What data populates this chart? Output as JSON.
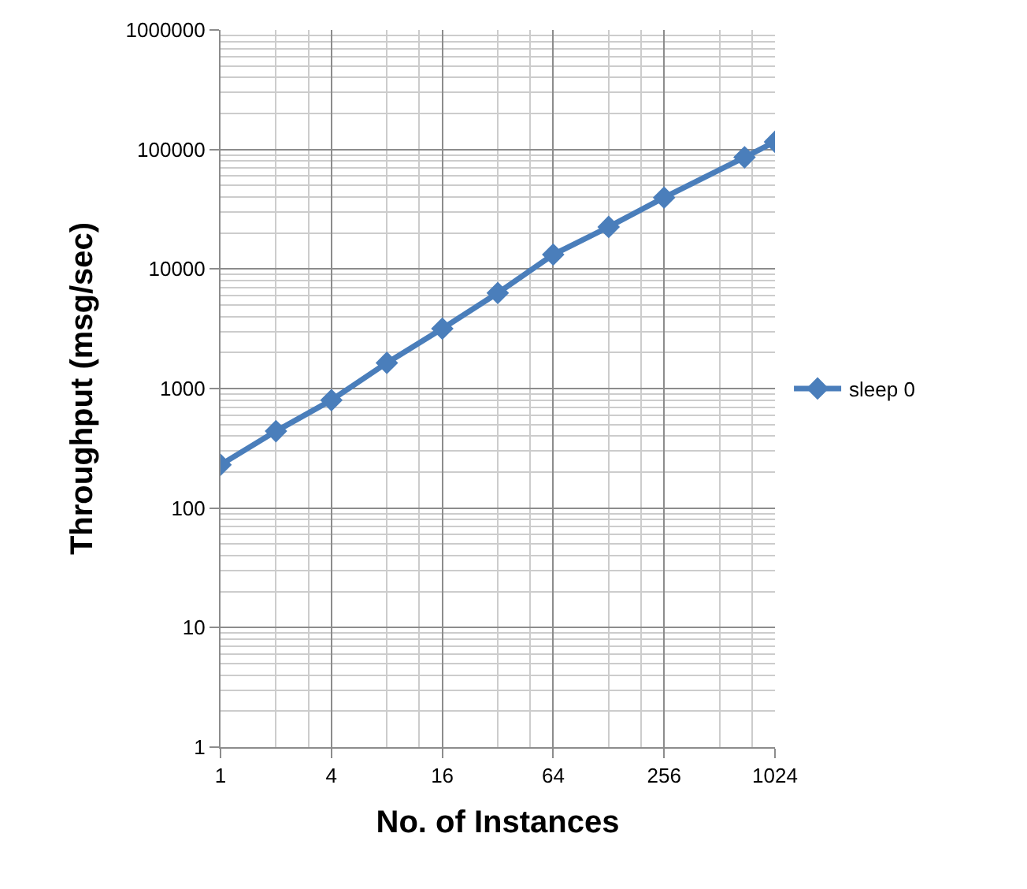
{
  "chart_data": {
    "type": "line",
    "xlabel": "No. of Instances",
    "ylabel": "Throughput (msg/sec)",
    "x": [
      1,
      2,
      4,
      8,
      16,
      32,
      64,
      128,
      256,
      700,
      1024
    ],
    "series": [
      {
        "name": "sleep 0",
        "color": "#4a7ebb",
        "values": [
          230,
          440,
          800,
          1640,
          3170,
          6300,
          13200,
          22500,
          39600,
          86000,
          116000
        ]
      }
    ],
    "log": "xy",
    "xlim": [
      1,
      1024
    ],
    "xticks": [
      1,
      4,
      16,
      64,
      256,
      1024
    ],
    "ylim": [
      1,
      1000000
    ],
    "yticks": [
      1,
      10,
      100,
      1000,
      10000,
      100000,
      1000000
    ],
    "grid": true,
    "legend": "right",
    "marker": "diamond",
    "line_style": "solid"
  }
}
